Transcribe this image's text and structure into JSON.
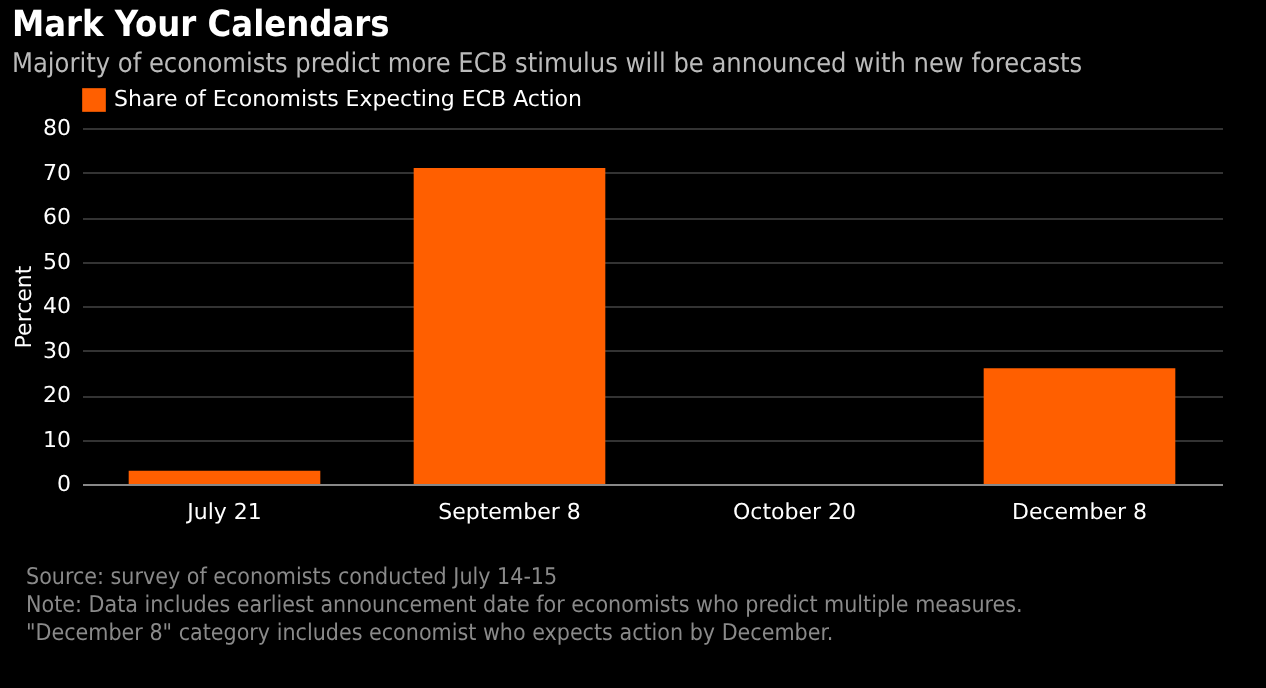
{
  "chart_data": {
    "type": "bar",
    "title": "Mark Your Calendars",
    "subtitle": "Majority of economists predict more ECB stimulus will be announced with new forecasts",
    "ylabel": "Percent",
    "categories": [
      "July 21",
      "September 8",
      "October 20",
      "December 8"
    ],
    "series": [
      {
        "name": "Share of Economists Expecting ECB Action",
        "color": "#ff5f00",
        "values": [
          3,
          71,
          0,
          26
        ]
      }
    ],
    "ylim": [
      0,
      80
    ],
    "yticks": [
      0,
      10,
      20,
      30,
      40,
      50,
      60,
      70,
      80
    ],
    "grid": "y",
    "legend": "top left",
    "annotations": [
      "Source: survey of economists conducted July 14-15",
      "Note: Data includes earliest announcement date for economists who predict multiple measures. \"December 8\" category includes economist who expects action by December."
    ]
  }
}
